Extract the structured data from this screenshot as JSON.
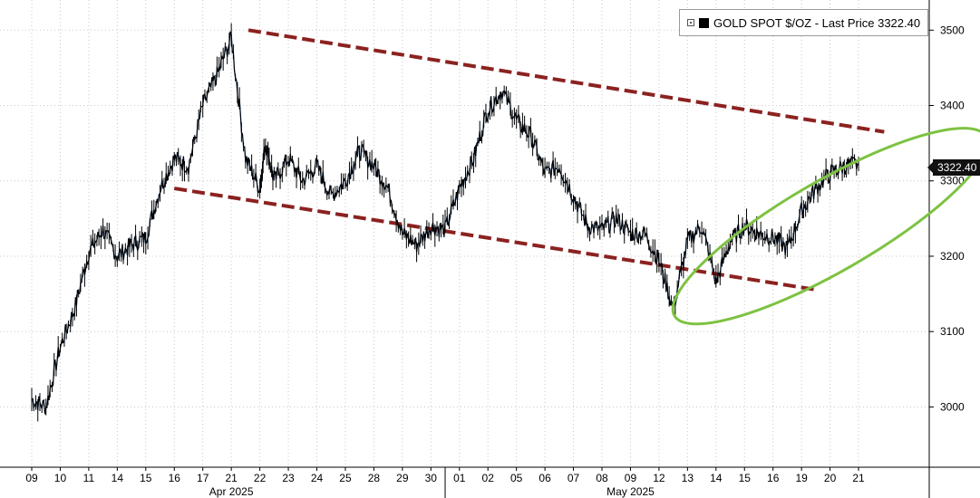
{
  "legend": {
    "label": "GOLD SPOT $/OZ - Last Price 3322.40",
    "box_icon": "expand-box-icon",
    "swatch_color": "#000000"
  },
  "last_price_tag": "3322.40",
  "colors": {
    "price_line": "#000000",
    "highlight_line": "#2f6fc0",
    "channel": "#8b2220",
    "ellipse": "#7dc241",
    "grid": "#c8c8c8"
  },
  "chart_data": {
    "type": "line",
    "title": "",
    "xlabel": "",
    "ylabel": "",
    "ylim": [
      2920,
      3540
    ],
    "yticks": [
      3000,
      3100,
      3200,
      3300,
      3400,
      3500
    ],
    "grid": true,
    "legend_position": "top-right",
    "x_ticks": [
      "09",
      "10",
      "11",
      "14",
      "15",
      "16",
      "17",
      "21",
      "22",
      "23",
      "24",
      "25",
      "28",
      "29",
      "30",
      "01",
      "02",
      "05",
      "06",
      "07",
      "08",
      "09",
      "12",
      "13",
      "14",
      "15",
      "16",
      "19",
      "20",
      "21"
    ],
    "month_labels": [
      {
        "label": "Apr 2025",
        "tick_index": 7
      },
      {
        "label": "May 2025",
        "tick_index": 21
      }
    ],
    "series": [
      {
        "type": "line",
        "x": [
          0,
          0.5,
          1,
          1.5,
          2,
          2.5,
          3,
          3.5,
          4,
          4.5,
          5,
          5.5,
          6,
          6.5,
          7,
          7.5,
          8,
          8.2,
          8.5,
          9,
          9.5,
          10,
          10.5,
          11,
          11.5,
          12,
          12.5,
          13,
          13.5,
          14,
          14.5,
          15,
          15.5,
          16,
          16.5,
          17,
          17.5,
          18,
          18.5,
          19,
          19.5,
          20,
          20.5,
          21,
          21.5,
          22,
          22.5,
          23,
          23.5,
          24,
          24.5,
          25,
          25.5,
          26,
          26.5,
          27,
          27.5,
          28,
          28.5,
          29
        ],
        "values": [
          3010,
          3000,
          3080,
          3130,
          3205,
          3235,
          3200,
          3215,
          3225,
          3290,
          3330,
          3320,
          3400,
          3440,
          3490,
          3330,
          3290,
          3350,
          3300,
          3330,
          3300,
          3320,
          3280,
          3300,
          3340,
          3320,
          3290,
          3230,
          3215,
          3240,
          3235,
          3290,
          3330,
          3395,
          3420,
          3380,
          3360,
          3310,
          3320,
          3280,
          3240,
          3235,
          3250,
          3230,
          3230,
          3195,
          3130,
          3220,
          3240,
          3165,
          3220,
          3240,
          3230,
          3225,
          3210,
          3260,
          3290,
          3310,
          3320,
          3322.4
        ]
      }
    ],
    "annotations": [
      {
        "type": "channel-line",
        "style": "dashed",
        "from": [
          7.6,
          3500
        ],
        "to": [
          29.9,
          3365
        ]
      },
      {
        "type": "channel-line",
        "style": "dashed",
        "from": [
          5.0,
          3290
        ],
        "to": [
          27.6,
          3155
        ]
      },
      {
        "type": "ellipse",
        "center": [
          28.0,
          3240
        ],
        "radius_x_ticks": 6.3,
        "radius_y": 60,
        "rotation_deg": -30
      }
    ]
  }
}
